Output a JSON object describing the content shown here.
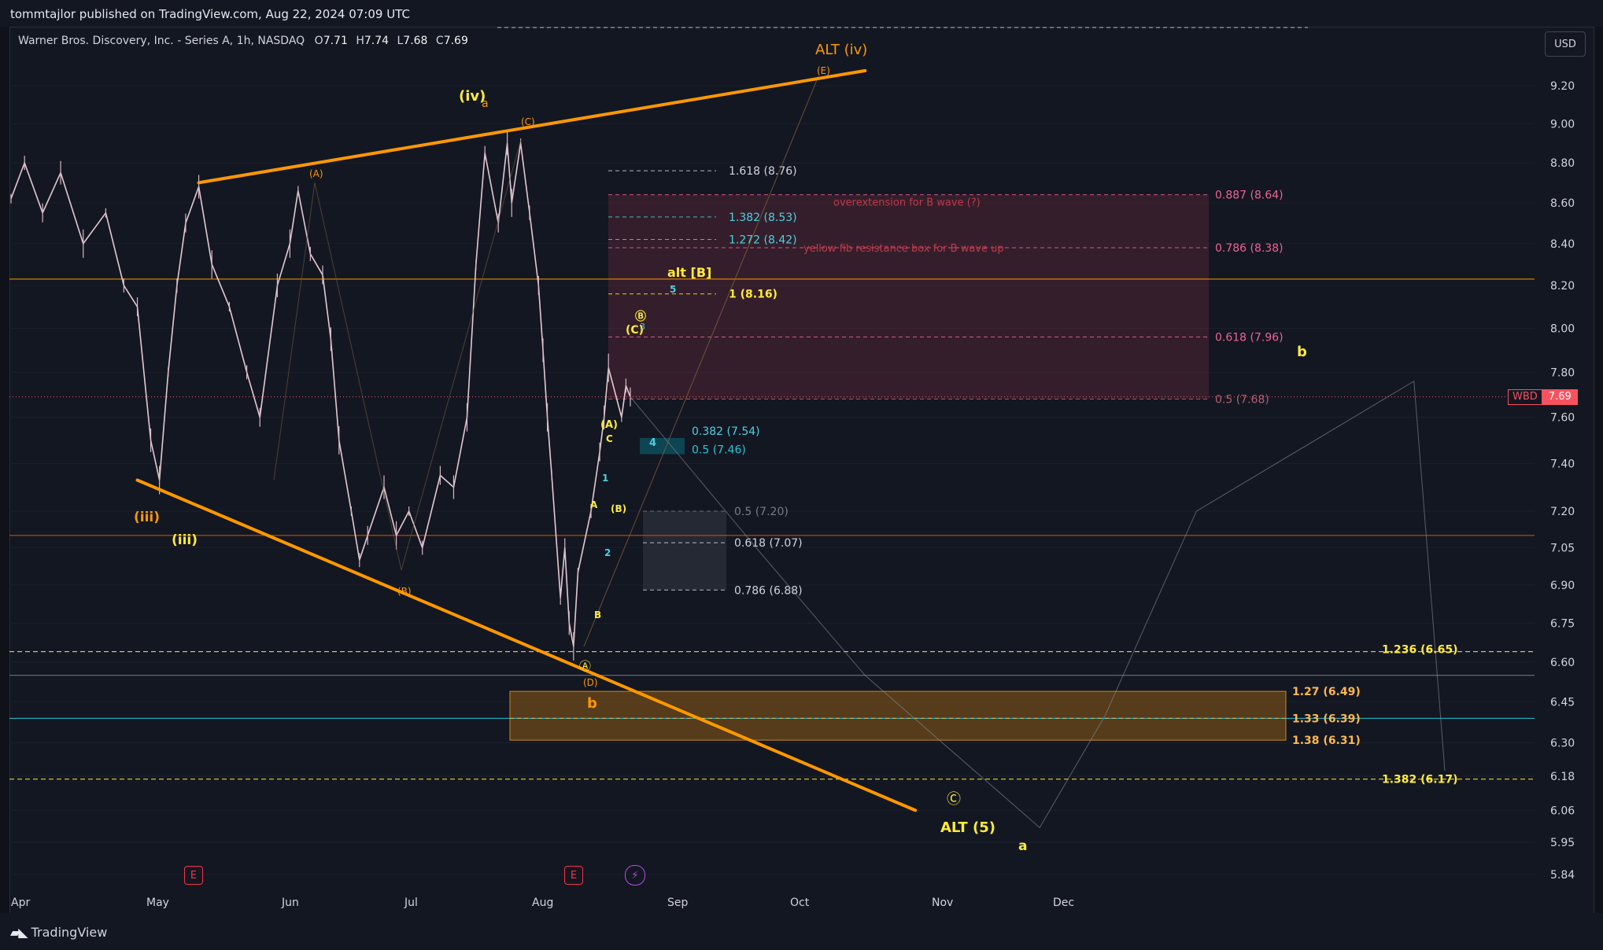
{
  "publisher": "tommtajlor published on TradingView.com, Aug 22, 2024 07:09 UTC",
  "symbol": {
    "name": "Warner Bros. Discovery, Inc. - Series A, 1h, NASDAQ",
    "open_key": "O",
    "open": "7.71",
    "high_key": "H",
    "high": "7.74",
    "low_key": "L",
    "low": "7.68",
    "close_key": "C",
    "close": "7.69"
  },
  "currency_button": "USD",
  "price_tag": {
    "symbol": "WBD",
    "value": "7.69"
  },
  "branding": "TradingView",
  "colors": {
    "background": "#131722",
    "trendline": "#ff9800",
    "wave_label": "#ffeb3b",
    "fib_red_box": "#8e3444",
    "fib_yellow_box": "#a86a12",
    "cyan": "#4dd0e1",
    "last_price": "#f7525f"
  },
  "events": {
    "earnings_icon": "E",
    "split_icon": "⚡"
  },
  "chart_data": {
    "type": "line",
    "symbol": "WBD",
    "timeframe": "1h",
    "y_scale": "log",
    "ylim": [
      5.8,
      9.35
    ],
    "x_ticks": [
      "Apr",
      "May",
      "Jun",
      "Jul",
      "Aug",
      "Sep",
      "Oct",
      "Nov",
      "Dec"
    ],
    "y_ticks": [
      "9.20",
      "9.00",
      "8.80",
      "8.60",
      "8.40",
      "8.20",
      "8.00",
      "7.80",
      "7.60",
      "7.40",
      "7.20",
      "7.05",
      "6.90",
      "6.75",
      "6.60",
      "6.45",
      "6.30",
      "6.18",
      "6.06",
      "5.95",
      "5.84"
    ],
    "last_price": 7.69,
    "price_series": [
      [
        "Apr 1",
        8.62
      ],
      [
        "Apr 4",
        8.8
      ],
      [
        "Apr 8",
        8.55
      ],
      [
        "Apr 12",
        8.75
      ],
      [
        "Apr 17",
        8.4
      ],
      [
        "Apr 22",
        8.55
      ],
      [
        "Apr 26",
        8.2
      ],
      [
        "Apr 29",
        8.1
      ],
      [
        "May 2",
        7.5
      ],
      [
        "May 4",
        7.33
      ],
      [
        "May 6",
        7.8
      ],
      [
        "May 8",
        8.2
      ],
      [
        "May 10",
        8.5
      ],
      [
        "May 13",
        8.68
      ],
      [
        "May 16",
        8.3
      ],
      [
        "May 20",
        8.1
      ],
      [
        "May 24",
        7.8
      ],
      [
        "May 27",
        7.6
      ],
      [
        "May 31",
        8.2
      ],
      [
        "Jun 3",
        8.4
      ],
      [
        "Jun 5",
        8.66
      ],
      [
        "Jun 8",
        8.35
      ],
      [
        "Jun 11",
        8.25
      ],
      [
        "Jun 13",
        7.95
      ],
      [
        "Jun 15",
        7.5
      ],
      [
        "Jun 18",
        7.2
      ],
      [
        "Jun 20",
        7.0
      ],
      [
        "Jun 22",
        7.1
      ],
      [
        "Jun 26",
        7.3
      ],
      [
        "Jun 29",
        7.1
      ],
      [
        "Jul 2",
        7.2
      ],
      [
        "Jul 5",
        7.05
      ],
      [
        "Jul 9",
        7.35
      ],
      [
        "Jul 12",
        7.3
      ],
      [
        "Jul 15",
        7.6
      ],
      [
        "Jul 17",
        8.3
      ],
      [
        "Jul 19",
        8.85
      ],
      [
        "Jul 22",
        8.5
      ],
      [
        "Jul 24",
        8.9
      ],
      [
        "Jul 25",
        8.6
      ],
      [
        "Jul 27",
        8.9
      ],
      [
        "Jul 29",
        8.55
      ],
      [
        "Jul 31",
        8.2
      ],
      [
        "Aug 1",
        7.9
      ],
      [
        "Aug 2",
        7.6
      ],
      [
        "Aug 3",
        7.35
      ],
      [
        "Aug 5",
        6.85
      ],
      [
        "Aug 6",
        7.05
      ],
      [
        "Aug 7",
        6.75
      ],
      [
        "Aug 8",
        6.66
      ],
      [
        "Aug 9",
        6.95
      ],
      [
        "Aug 12",
        7.2
      ],
      [
        "Aug 14",
        7.45
      ],
      [
        "Aug 15",
        7.6
      ],
      [
        "Aug 16",
        7.82
      ],
      [
        "Aug 19",
        7.6
      ],
      [
        "Aug 20",
        7.74
      ],
      [
        "Aug 21",
        7.69
      ]
    ],
    "horizontal_lines": [
      {
        "price": 8.23,
        "color": "#ff9800",
        "style": "solid"
      },
      {
        "price": 7.1,
        "color": "#e65100",
        "style": "solid"
      },
      {
        "price": 6.64,
        "color": "#ffeb3b",
        "style": "dashed"
      },
      {
        "price": 6.55,
        "color": "#787b86",
        "style": "solid"
      },
      {
        "price": 6.39,
        "color": "#26c6da",
        "style": "solid"
      },
      {
        "price": 6.17,
        "color": "#ffeb3b",
        "style": "dashed"
      }
    ],
    "trendlines": [
      {
        "name": "upper",
        "from": [
          "May 13",
          8.7
        ],
        "to": [
          "Oct 15",
          9.28
        ]
      },
      {
        "name": "lower",
        "from": [
          "Apr 29",
          7.33
        ],
        "to": [
          "Oct 26",
          6.06
        ]
      }
    ],
    "projection_path": [
      [
        "Aug 21",
        7.69
      ],
      [
        "Sep 20",
        7.05
      ],
      [
        "Oct 15",
        6.55
      ],
      [
        "Nov 25",
        6.0
      ],
      [
        "Dec 10",
        6.4
      ],
      [
        "Dec 30",
        7.2
      ],
      [
        "Jan 28",
        7.76
      ],
      [
        "Mar 1",
        6.2
      ]
    ],
    "fib_levels": [
      {
        "label": "1.618 (8.76)",
        "price": 8.76,
        "color": "#d1d4dc"
      },
      {
        "label": "1.382 (8.53)",
        "price": 8.53,
        "color": "#4dd0e1"
      },
      {
        "label": "1.272 (8.42)",
        "price": 8.42,
        "color": "#4dd0e1"
      },
      {
        "label": "1 (8.16)",
        "price": 8.16,
        "color": "#ffeb3b"
      },
      {
        "label": "0.382 (7.54)",
        "price": 7.54,
        "color": "#4dd0e1"
      },
      {
        "label": "0.5 (7.46)",
        "price": 7.46,
        "color": "#26c6da"
      },
      {
        "label": "0.5 (7.20)",
        "price": 7.2,
        "color": "#787b86"
      },
      {
        "label": "0.618 (7.07)",
        "price": 7.07,
        "color": "#d1d4dc"
      },
      {
        "label": "0.786 (6.88)",
        "price": 6.88,
        "color": "#d1d4dc"
      },
      {
        "label": "0.887 (8.64)",
        "price": 8.64,
        "color": "#f06292"
      },
      {
        "label": "0.786 (8.38)",
        "price": 8.38,
        "color": "#f06292"
      },
      {
        "label": "0.618 (7.96)",
        "price": 7.96,
        "color": "#f06292"
      },
      {
        "label": "0.5 (7.68)",
        "price": 7.68,
        "color": "#b06070"
      },
      {
        "label": "1.236 (6.65)",
        "price": 6.65,
        "color": "#ffeb3b"
      },
      {
        "label": "1.27 (6.49)",
        "price": 6.49,
        "color": "#ffb74d"
      },
      {
        "label": "1.33 (6.39)",
        "price": 6.39,
        "color": "#ffb74d"
      },
      {
        "label": "1.38 (6.31)",
        "price": 6.31,
        "color": "#ffb74d"
      },
      {
        "label": "1.382 (6.17)",
        "price": 6.17,
        "color": "#ffeb3b"
      }
    ],
    "annotations": [
      {
        "text": "overextension for B wave (?)",
        "color": "#c0394b"
      },
      {
        "text": "yellow fib resistance box for B wave up",
        "color": "#c0394b"
      }
    ],
    "wave_labels": [
      {
        "text": "ALT (iv)",
        "color": "#ff9800"
      },
      {
        "text": "(E)",
        "color": "#ff9800"
      },
      {
        "text": "(iv)",
        "color": "#ffeb3b"
      },
      {
        "text": "a",
        "color": "#ff9800"
      },
      {
        "text": "(C)",
        "color": "#ff9800"
      },
      {
        "text": "(A)",
        "color": "#ff9800"
      },
      {
        "text": "(iii)",
        "color": "#ff9800"
      },
      {
        "text": "(iii)",
        "color": "#ffeb3b"
      },
      {
        "text": "(B)",
        "color": "#ff9800"
      },
      {
        "text": "alt [B]",
        "color": "#ffeb3b"
      },
      {
        "text": "5",
        "color": "#4dd0e1"
      },
      {
        "text": "Ⓑ",
        "color": "#ffeb3b"
      },
      {
        "text": "(C)",
        "color": "#ffeb3b"
      },
      {
        "text": "3",
        "color": "#4dd0e1"
      },
      {
        "text": "(A)",
        "color": "#ffeb3b"
      },
      {
        "text": "C",
        "color": "#ffeb3b"
      },
      {
        "text": "4",
        "color": "#4dd0e1"
      },
      {
        "text": "1",
        "color": "#4dd0e1"
      },
      {
        "text": "A",
        "color": "#ffeb3b"
      },
      {
        "text": "(B)",
        "color": "#ffeb3b"
      },
      {
        "text": "2",
        "color": "#4dd0e1"
      },
      {
        "text": "B",
        "color": "#ffeb3b"
      },
      {
        "text": "Ⓐ",
        "color": "#ffeb3b"
      },
      {
        "text": "(D)",
        "color": "#ff9800"
      },
      {
        "text": "b",
        "color": "#ff9800"
      },
      {
        "text": "Ⓒ",
        "color": "#ffeb3b"
      },
      {
        "text": "ALT (5)",
        "color": "#ffeb3b"
      },
      {
        "text": "a",
        "color": "#ffeb3b"
      },
      {
        "text": "b",
        "color": "#ffeb3b"
      }
    ]
  }
}
